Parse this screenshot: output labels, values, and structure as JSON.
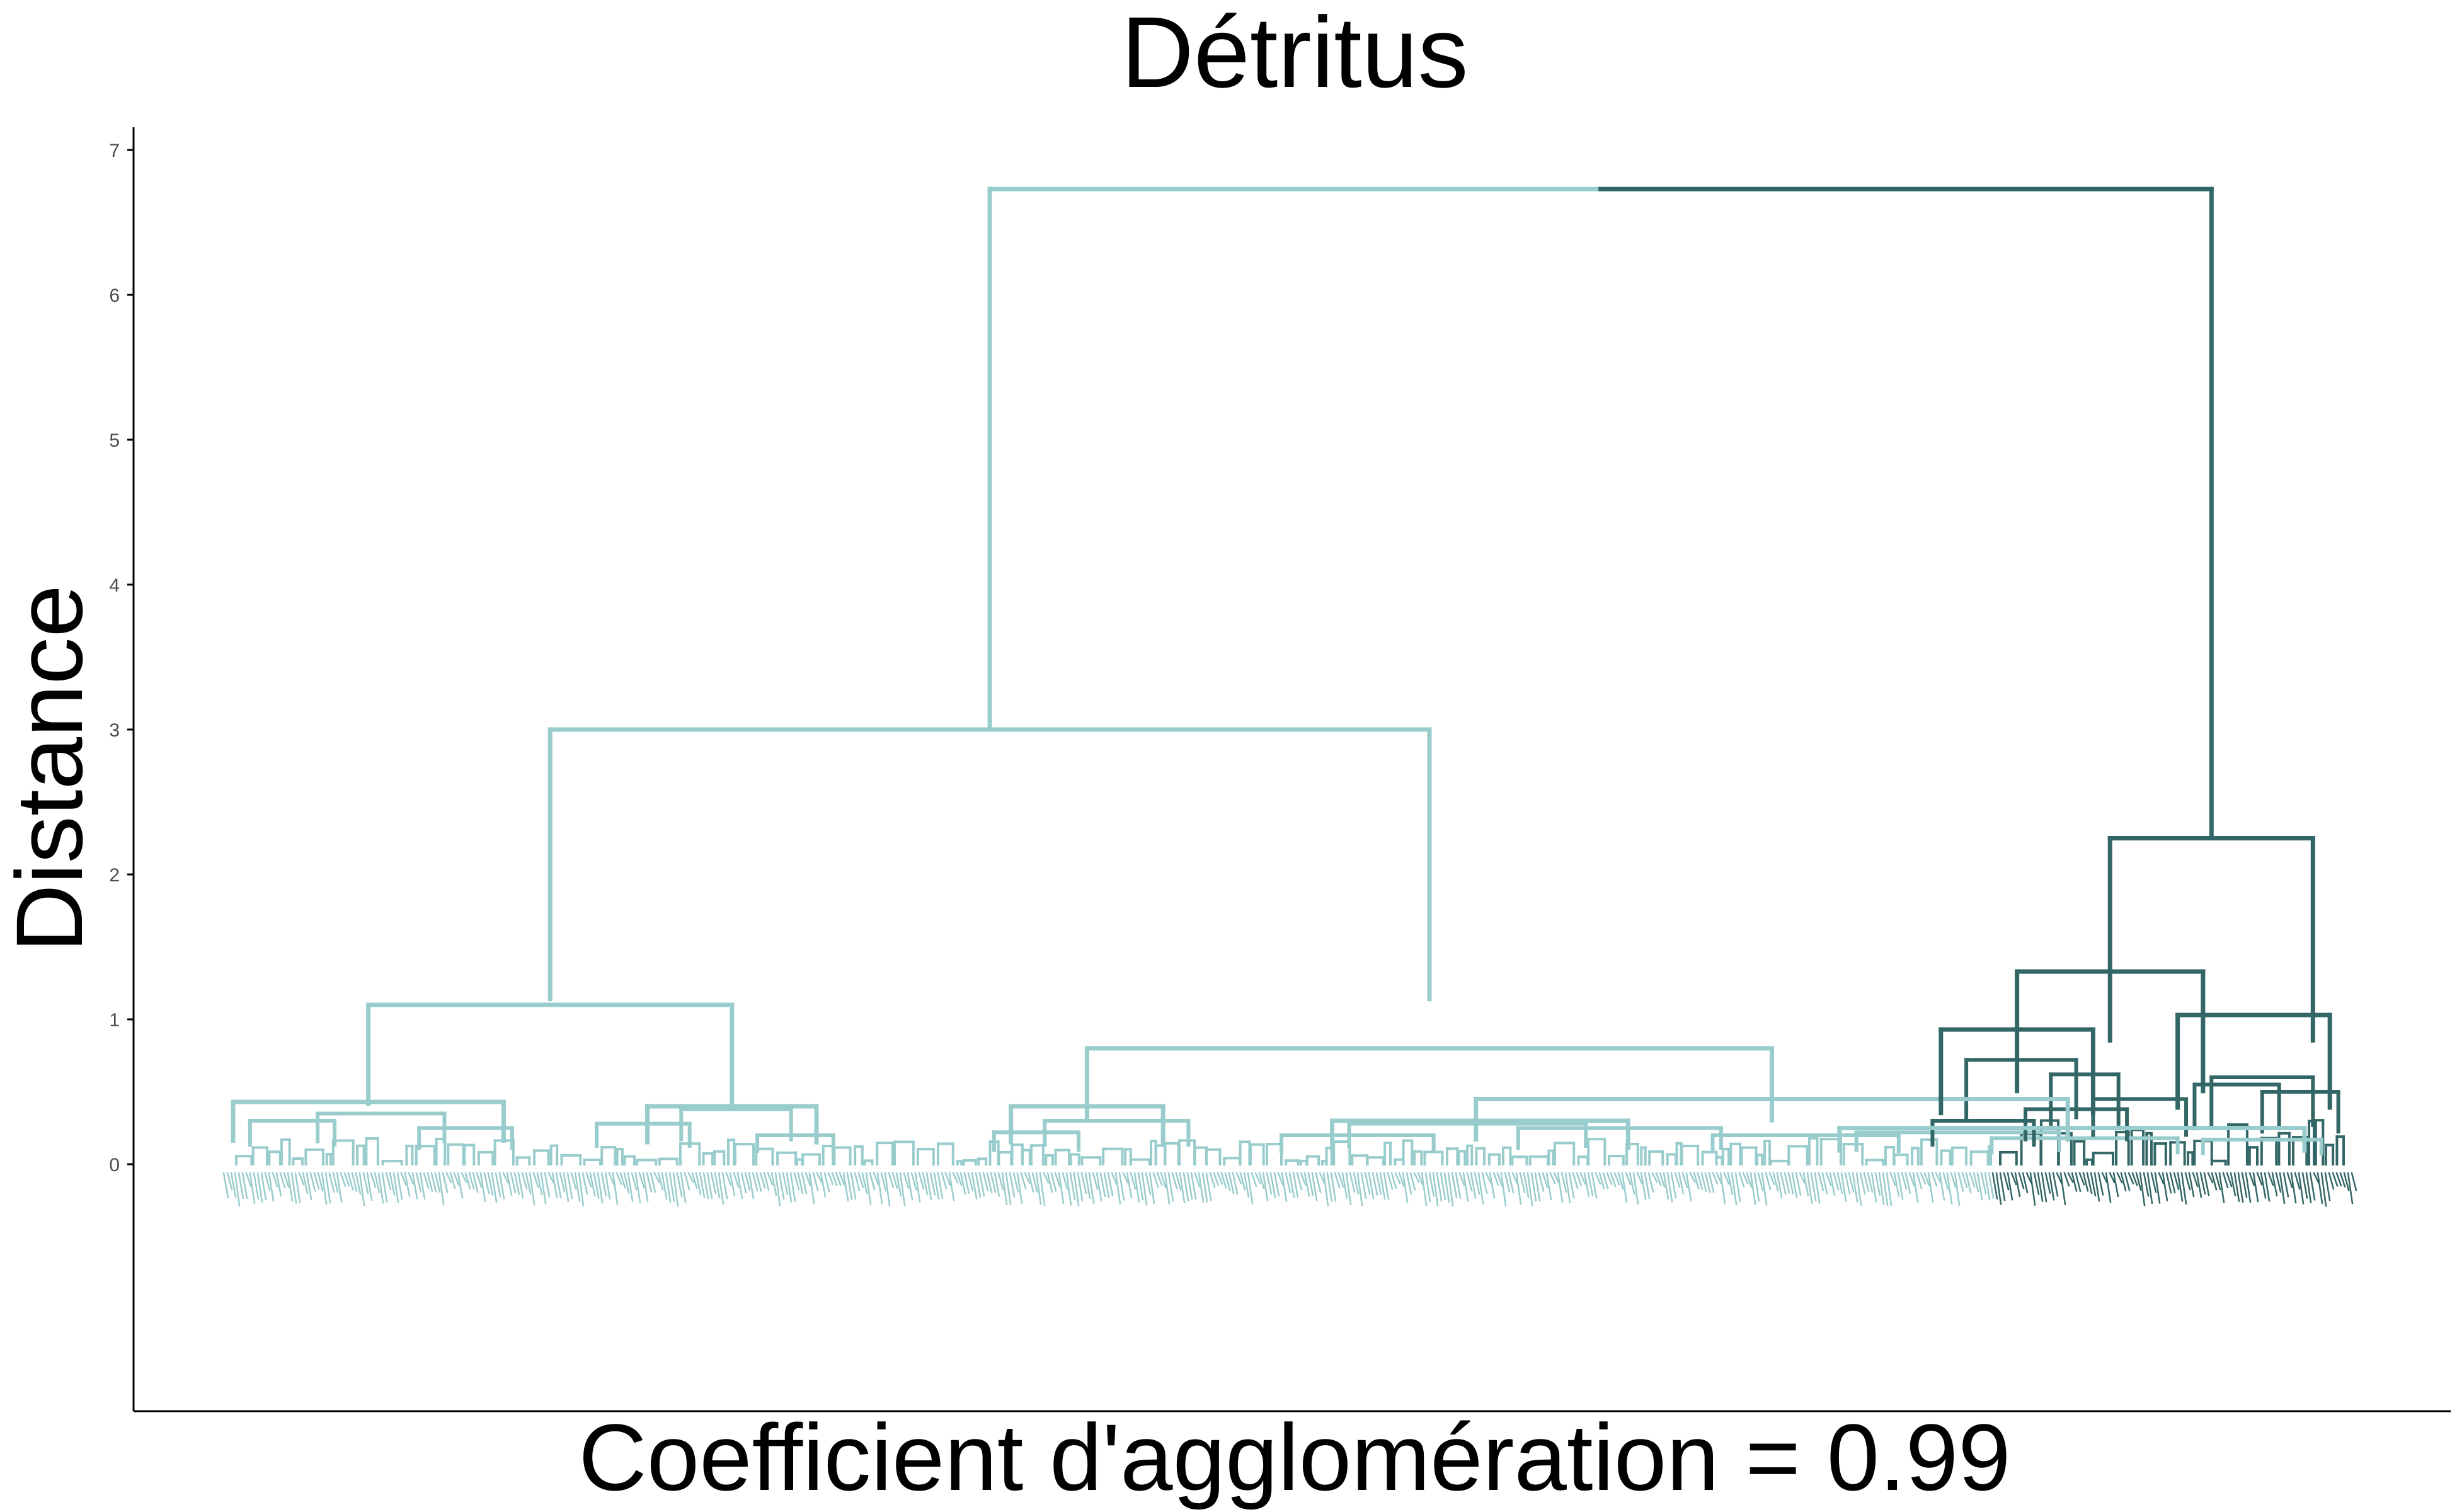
{
  "chart_data": {
    "type": "dendrogram",
    "title": "Détritus",
    "xlabel": "Coefficient d'agglomération = 0.99",
    "ylabel": "Distance",
    "ylim": [
      -1.7,
      7.1
    ],
    "yticks": [
      0,
      1,
      2,
      3,
      4,
      5,
      6,
      7
    ],
    "grid": false,
    "colors": {
      "cluster_1": "#99cccc",
      "cluster_2": "#336666"
    },
    "merges": [
      {
        "x1": 8.95,
        "x2": 23.4,
        "height": 6.73,
        "color_left": "#99cccc",
        "color_right": "#336666"
      },
      {
        "x1": 3.75,
        "x2": 14.15,
        "height": 3.0,
        "color": "#99cccc"
      },
      {
        "x1": 1.6,
        "x2": 5.9,
        "height": 1.1,
        "color": "#99cccc"
      },
      {
        "x1": 10.1,
        "x2": 18.2,
        "height": 0.8,
        "color": "#99cccc"
      },
      {
        "x1": 0.0,
        "x2": 3.2,
        "height": 0.43,
        "color": "#99cccc"
      },
      {
        "x1": 4.9,
        "x2": 6.9,
        "height": 0.4,
        "color": "#99cccc"
      },
      {
        "x1": 9.2,
        "x2": 11.0,
        "height": 0.4,
        "color": "#99cccc"
      },
      {
        "x1": 14.7,
        "x2": 21.7,
        "height": 0.45,
        "color": "#99cccc"
      },
      {
        "x1": 13.0,
        "x2": 16.5,
        "height": 0.3,
        "color": "#99cccc"
      },
      {
        "x1": 19.0,
        "x2": 24.5,
        "height": 0.25,
        "color": "#99cccc"
      },
      {
        "x1": 22.2,
        "x2": 24.6,
        "height": 2.25,
        "color": "#336666"
      },
      {
        "x1": 21.1,
        "x2": 23.3,
        "height": 1.33,
        "color": "#336666"
      },
      {
        "x1": 20.2,
        "x2": 22.0,
        "height": 0.93,
        "color": "#336666"
      },
      {
        "x1": 23.0,
        "x2": 24.8,
        "height": 1.03,
        "color": "#336666"
      }
    ]
  }
}
